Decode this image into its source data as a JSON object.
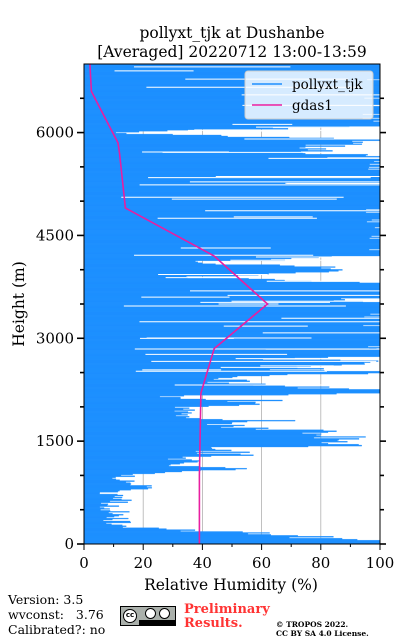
{
  "chart_data": {
    "type": "line",
    "title": [
      "pollyxt_tjk at Dushanbe",
      "[Averaged] 20220712 13:00-13:59"
    ],
    "xlabel": "Relative Humidity (%)",
    "ylabel": "Height (m)",
    "xlim": [
      0,
      100
    ],
    "ylim": [
      0,
      7000
    ],
    "xticks": [
      0,
      20,
      40,
      60,
      80,
      100
    ],
    "yticks": [
      0,
      1500,
      3000,
      4500,
      6000
    ],
    "grid": "vertical",
    "legend_position": "top-right",
    "series": [
      {
        "name": "pollyxt_tjk",
        "color": "#1e90ff",
        "style": "noisy-profile",
        "points": [
          [
            100,
            50
          ],
          [
            76,
            100
          ],
          [
            60,
            150
          ],
          [
            39,
            200
          ],
          [
            14,
            250
          ],
          [
            12,
            300
          ],
          [
            10,
            350
          ],
          [
            11,
            400
          ],
          [
            12,
            450
          ],
          [
            8,
            500
          ],
          [
            9,
            550
          ],
          [
            10,
            600
          ],
          [
            13,
            650
          ],
          [
            11,
            700
          ],
          [
            8,
            750
          ],
          [
            23,
            800
          ],
          [
            18,
            850
          ],
          [
            15,
            900
          ],
          [
            11,
            950
          ],
          [
            16,
            1000
          ],
          [
            25,
            1050
          ],
          [
            49,
            1100
          ],
          [
            30,
            1150
          ],
          [
            40,
            1200
          ],
          [
            28,
            1250
          ],
          [
            58,
            1300
          ],
          [
            38,
            1350
          ],
          [
            45,
            1400
          ],
          [
            100,
            1450
          ],
          [
            80,
            1500
          ],
          [
            85,
            1550
          ],
          [
            92,
            1600
          ],
          [
            75,
            1650
          ],
          [
            58,
            1700
          ],
          [
            52,
            1750
          ],
          [
            64,
            1800
          ],
          [
            34,
            1850
          ],
          [
            37,
            1900
          ],
          [
            35,
            1950
          ],
          [
            32,
            2000
          ],
          [
            64,
            2050
          ],
          [
            56,
            2100
          ],
          [
            27,
            2150
          ],
          [
            100,
            2200
          ],
          [
            99,
            2250
          ],
          [
            65,
            2300
          ],
          [
            42,
            2350
          ],
          [
            46,
            2400
          ],
          [
            44,
            2450
          ],
          [
            100,
            2500
          ],
          [
            68,
            2550
          ],
          [
            75,
            2600
          ],
          [
            100,
            2650
          ],
          [
            69,
            2700
          ],
          [
            100,
            2750
          ],
          [
            100,
            2800
          ],
          [
            100,
            2900
          ],
          [
            100,
            3000
          ],
          [
            100,
            3100
          ],
          [
            100,
            3200
          ],
          [
            100,
            3300
          ],
          [
            100,
            3400
          ],
          [
            100,
            3500
          ],
          [
            95,
            3550
          ],
          [
            100,
            3650
          ],
          [
            100,
            3800
          ],
          [
            35,
            3900
          ],
          [
            100,
            4000
          ],
          [
            33,
            4100
          ],
          [
            100,
            4200
          ],
          [
            100,
            4400
          ],
          [
            100,
            4600
          ],
          [
            100,
            4800
          ],
          [
            100,
            5000
          ],
          [
            100,
            5200
          ],
          [
            100,
            5400
          ],
          [
            100,
            5600
          ],
          [
            70,
            5750
          ],
          [
            100,
            5900
          ],
          [
            5,
            6000
          ],
          [
            100,
            6100
          ],
          [
            100,
            6300
          ],
          [
            100,
            6500
          ],
          [
            100,
            6700
          ],
          [
            100,
            6900
          ],
          [
            100,
            7000
          ]
        ]
      },
      {
        "name": "gdas1",
        "color": "#e91ea0",
        "style": "line",
        "points": [
          [
            39,
            0
          ],
          [
            39,
            1000
          ],
          [
            39.5,
            2200
          ],
          [
            44,
            2850
          ],
          [
            62,
            3500
          ],
          [
            44,
            4200
          ],
          [
            14,
            4900
          ],
          [
            12,
            5700
          ],
          [
            11.5,
            5850
          ],
          [
            2.5,
            6600
          ],
          [
            2,
            7000
          ]
        ]
      }
    ]
  },
  "footer": {
    "version": "Version: 3.5",
    "wvconst": "wvconst:   3.76",
    "calibrated": "Calibrated?: no",
    "preliminary": "Preliminary\nResults.",
    "copyright": "© TROPOS 2022.\nCC BY SA 4.0 License.",
    "license_badge": "cc"
  }
}
